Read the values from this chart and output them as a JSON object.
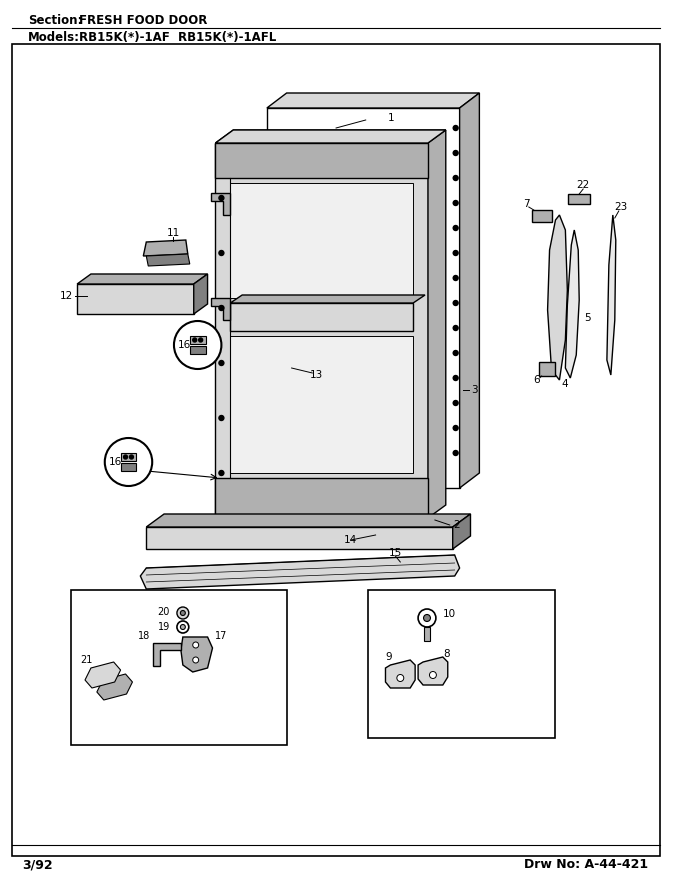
{
  "title_section": "Section:",
  "title_section_value": "FRESH FOOD DOOR",
  "title_models": "Models:",
  "title_models_value": "RB15K(*)-1AF  RB15K(*)-1AFL",
  "footer_left": "3/92",
  "footer_right": "Drw No: A-44-421",
  "bg_color": "#ffffff"
}
